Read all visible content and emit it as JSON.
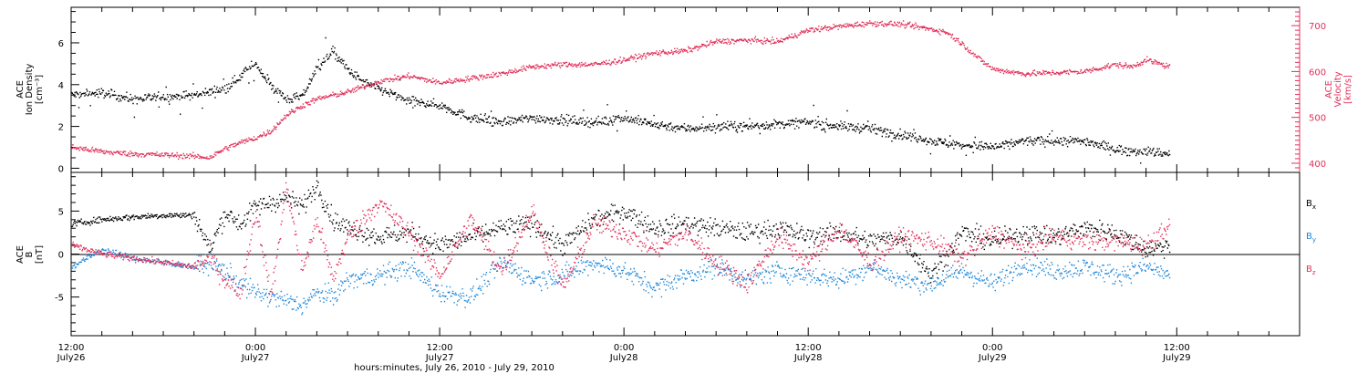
{
  "colors": {
    "black": "#000000",
    "red": "#e0305a",
    "blue": "#1c86d8"
  },
  "time_axis": {
    "tick_times": [
      "12:00",
      "0:00",
      "12:00",
      "0:00",
      "12:00",
      "0:00",
      "12:00"
    ],
    "tick_dates": [
      "July26",
      "July27",
      "July27",
      "July28",
      "July28",
      "July29",
      "July29"
    ],
    "tick_hours": [
      0,
      12,
      24,
      36,
      48,
      60,
      72
    ],
    "xlabel": "hours:minutes, July 26, 2010 - July 29, 2010",
    "xlim_hours": [
      0,
      80
    ],
    "minor_tick_hours": 2
  },
  "panels": {
    "top": {
      "left_label_line1": "ACE",
      "left_label_line2": "Ion Density",
      "left_unit": "[cm⁻³]",
      "right_label_line1": "ACE",
      "right_label_line2": "Velocity",
      "right_unit": "[km/s]"
    },
    "bottom": {
      "left_label_line1": "ACE",
      "left_label_line2": "B",
      "left_unit": "[nT]",
      "legend": [
        {
          "main": "B",
          "sub": "x",
          "color": "#000000"
        },
        {
          "main": "B",
          "sub": "y",
          "color": "#1c86d8"
        },
        {
          "main": "B",
          "sub": "z",
          "color": "#e0305a"
        }
      ]
    }
  },
  "chart_data": [
    {
      "type": "scatter",
      "panel": "top",
      "title": "",
      "xlabel": "",
      "ylabel": "ACE Ion Density [cm⁻³]",
      "y2label": "ACE Velocity [km/s]",
      "ylim": [
        -0.2,
        7.7
      ],
      "y2lim": [
        380,
        740
      ],
      "yticks": [
        0,
        2,
        4,
        6
      ],
      "y2ticks": [
        400,
        500,
        600,
        700
      ],
      "grid": false,
      "series": [
        {
          "name": "",
          "axis": "left",
          "color": "#000000",
          "x": [
            0,
            2,
            4,
            6,
            8,
            10,
            12,
            13,
            14,
            15,
            16,
            17,
            18,
            19,
            20,
            22,
            24,
            26,
            28,
            30,
            32,
            34,
            36,
            38,
            40,
            42,
            44,
            46,
            48,
            50,
            52,
            54,
            56,
            58,
            60,
            62,
            64,
            66,
            68,
            70,
            71.5
          ],
          "y": [
            3.5,
            3.6,
            3.3,
            3.4,
            3.5,
            3.8,
            5.0,
            3.9,
            3.3,
            3.4,
            4.8,
            5.6,
            4.7,
            4.1,
            3.8,
            3.2,
            3.0,
            2.4,
            2.2,
            2.4,
            2.3,
            2.2,
            2.4,
            2.1,
            1.9,
            2.0,
            2.0,
            2.1,
            2.2,
            2.0,
            1.9,
            1.6,
            1.3,
            1.1,
            1.0,
            1.3,
            1.3,
            1.3,
            0.9,
            0.8,
            0.7
          ]
        },
        {
          "name": "",
          "axis": "right",
          "color": "#e0305a",
          "x": [
            0,
            2,
            4,
            6,
            8,
            9,
            10,
            11,
            12,
            13,
            14,
            15,
            16,
            17,
            18,
            20,
            22,
            24,
            26,
            28,
            30,
            32,
            34,
            36,
            38,
            40,
            42,
            44,
            46,
            48,
            50,
            52,
            54,
            56,
            57,
            58,
            59,
            60,
            62,
            64,
            66,
            68,
            69,
            70,
            71.5
          ],
          "y": [
            435,
            425,
            420,
            418,
            415,
            412,
            432,
            445,
            455,
            470,
            505,
            525,
            540,
            548,
            555,
            578,
            590,
            575,
            585,
            595,
            610,
            615,
            615,
            625,
            640,
            645,
            665,
            668,
            665,
            690,
            698,
            705,
            703,
            692,
            685,
            660,
            630,
            605,
            595,
            597,
            600,
            615,
            610,
            625,
            610
          ]
        }
      ]
    },
    {
      "type": "scatter",
      "panel": "bottom",
      "title": "",
      "xlabel": "",
      "ylabel": "ACE B [nT]",
      "ylim": [
        -9.5,
        9.5
      ],
      "yticks": [
        -5,
        0,
        5
      ],
      "zero_line": true,
      "grid": false,
      "series": [
        {
          "name": "Bx",
          "color": "#000000",
          "x": [
            0,
            2,
            4,
            6,
            8,
            9,
            10,
            11,
            12,
            13,
            14,
            15,
            16,
            17,
            18,
            20,
            22,
            24,
            26,
            28,
            30,
            32,
            34,
            36,
            38,
            40,
            42,
            44,
            46,
            48,
            50,
            52,
            54,
            56,
            58,
            60,
            62,
            64,
            66,
            68,
            70,
            71.5
          ],
          "y": [
            3.5,
            4.0,
            4.3,
            4.5,
            4.5,
            0.5,
            4.8,
            3.5,
            5.5,
            6.0,
            6.5,
            5.5,
            8.0,
            4.0,
            3.0,
            2.0,
            2.5,
            1.0,
            2.0,
            3.0,
            3.5,
            1.0,
            4.0,
            5.0,
            3.0,
            3.5,
            3.0,
            2.5,
            3.0,
            2.0,
            2.5,
            1.5,
            2.0,
            -2.5,
            2.5,
            1.5,
            2.5,
            2.0,
            3.0,
            2.5,
            0.5,
            1.0
          ]
        },
        {
          "name": "By",
          "color": "#1c86d8",
          "x": [
            0,
            2,
            4,
            6,
            8,
            9,
            10,
            11,
            12,
            13,
            14,
            15,
            16,
            17,
            18,
            20,
            22,
            24,
            26,
            28,
            30,
            32,
            34,
            36,
            38,
            40,
            42,
            44,
            46,
            48,
            50,
            52,
            54,
            56,
            58,
            60,
            62,
            64,
            66,
            68,
            70,
            71.5
          ],
          "y": [
            -1.5,
            0.5,
            -0.5,
            -1.0,
            -1.5,
            -1.0,
            -2.0,
            -3.5,
            -4.5,
            -5.0,
            -5.5,
            -6.0,
            -4.5,
            -5.0,
            -3.0,
            -2.5,
            -1.5,
            -4.5,
            -5.0,
            -1.0,
            -3.0,
            -2.5,
            -1.0,
            -2.0,
            -4.0,
            -2.5,
            -1.5,
            -3.0,
            -2.0,
            -2.5,
            -3.0,
            -1.5,
            -3.0,
            -3.5,
            -2.0,
            -3.5,
            -1.0,
            -2.0,
            -1.5,
            -2.5,
            -1.5,
            -2.5
          ]
        },
        {
          "name": "Bz",
          "color": "#e0305a",
          "x": [
            0,
            2,
            4,
            6,
            8,
            9,
            10,
            11,
            12,
            13,
            14,
            15,
            16,
            17,
            18,
            20,
            22,
            24,
            26,
            28,
            30,
            32,
            34,
            36,
            38,
            40,
            42,
            44,
            46,
            48,
            50,
            52,
            54,
            56,
            58,
            60,
            62,
            64,
            66,
            68,
            70,
            71.5
          ],
          "y": [
            1.0,
            0.0,
            -0.5,
            -1.0,
            -1.5,
            -0.5,
            -3.0,
            -4.5,
            5.0,
            -5.0,
            8.0,
            -2.0,
            4.0,
            -3.0,
            2.0,
            6.0,
            2.5,
            -2.5,
            4.0,
            -2.0,
            5.0,
            -4.0,
            3.5,
            2.5,
            0.5,
            2.5,
            -1.0,
            -3.5,
            2.0,
            -1.0,
            3.0,
            -1.0,
            2.0,
            1.5,
            -0.5,
            2.5,
            0.5,
            2.0,
            1.5,
            1.5,
            1.0,
            3.5
          ]
        }
      ]
    }
  ]
}
